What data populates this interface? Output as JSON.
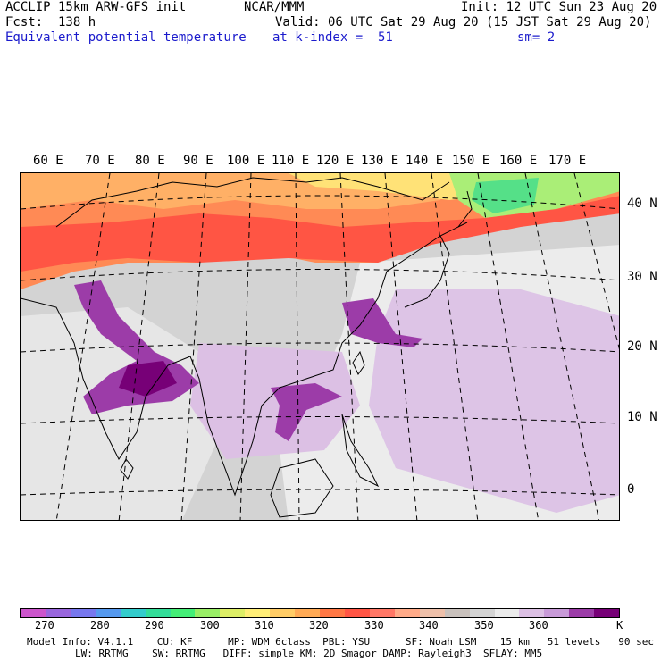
{
  "header": {
    "left_line1": "ACCLIP 15km ARW-GFS init",
    "left_line2": "Fcst:  138 h",
    "left_line3": "Equivalent potential temperature",
    "center_line1": "NCAR/MMM",
    "valid_line": "Valid: 06 UTC Sat 29 Aug 20 (15 JST Sat 29 Aug 20)",
    "level_line": "at k-index =  51",
    "init_line": "Init: 12 UTC Sun 23 Aug 20",
    "smooth_line": "sm= 2"
  },
  "map": {
    "lon_labels": [
      "60 E",
      "70 E",
      "80 E",
      "90 E",
      "100 E",
      "110 E",
      "120 E",
      "130 E",
      "140 E",
      "150 E",
      "160 E",
      "170 E"
    ],
    "lat_labels": [
      "40 N",
      "30 N",
      "20 N",
      "10 N",
      "0"
    ]
  },
  "colorbar": {
    "colors": [
      "#cc55cc",
      "#9966dd",
      "#7777ee",
      "#5599ee",
      "#33cccc",
      "#33dd99",
      "#44ee77",
      "#99ee66",
      "#ddee66",
      "#ffee77",
      "#ffcc66",
      "#ffaa55",
      "#ff7744",
      "#ff5544",
      "#ff7766",
      "#ffaa88",
      "#eec0aa",
      "#c9c1bc",
      "#d4d4d4",
      "#ebebeb",
      "#dcc0e4",
      "#c89ad8",
      "#9c3ca8",
      "#770077"
    ],
    "tick_labels": [
      "270",
      "280",
      "290",
      "300",
      "310",
      "320",
      "330",
      "340",
      "350",
      "360"
    ],
    "unit": "K"
  },
  "model_info": {
    "line1": "Model Info: V4.1.1    CU: KF      MP: WDM 6class  PBL: YSU      SF: Noah LSM    15 km   51 levels   90 sec",
    "line2": "LW: RRTMG    SW: RRTMG   DIFF: simple KM: 2D Smagor DAMP: Rayleigh3  SFLAY: MM5"
  }
}
